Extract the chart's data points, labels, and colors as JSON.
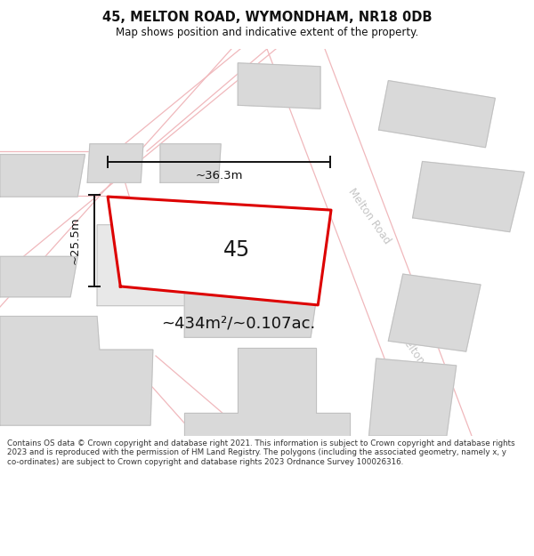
{
  "title": "45, MELTON ROAD, WYMONDHAM, NR18 0DB",
  "subtitle": "Map shows position and indicative extent of the property.",
  "footer": "Contains OS data © Crown copyright and database right 2021. This information is subject to Crown copyright and database rights 2023 and is reproduced with the permission of HM Land Registry. The polygons (including the associated geometry, namely x, y co-ordinates) are subject to Crown copyright and database rights 2023 Ordnance Survey 100026316.",
  "area_label": "~434m²/~0.107ac.",
  "width_label": "~36.3m",
  "height_label": "~25.5m",
  "property_number": "45",
  "map_bg": "#f7f7f7",
  "road_color": "#f0b8bc",
  "building_fill": "#d9d9d9",
  "building_stroke": "#c0c0c0",
  "property_fill": "#ffffff",
  "property_stroke": "#dd0000",
  "road_label_color": "#c8c8c8",
  "melton_road_label": "Melton Road",
  "dim_color": "#111111",
  "white_area": "#ffffff"
}
